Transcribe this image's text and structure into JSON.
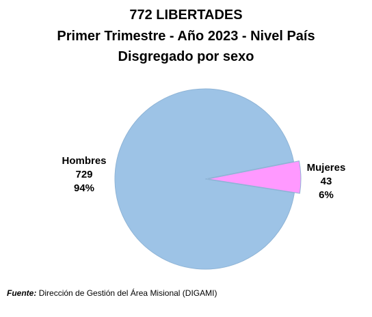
{
  "chart_data": {
    "type": "pie",
    "title": "772  LIBERTADES",
    "subtitle": "Primer Trimestre - Año 2023 - Nivel País",
    "subtitle2": "Disgregado por sexo",
    "slices": [
      {
        "name": "Hombres",
        "value": 729,
        "percent": "94%",
        "color": "#9dc3e6"
      },
      {
        "name": "Mujeres",
        "value": 43,
        "percent": "6%",
        "color": "#ff99ff"
      }
    ]
  },
  "source": {
    "label": "Fuente:",
    "text": "Dirección de Gestión del Área Misional (DIGAMI)"
  }
}
